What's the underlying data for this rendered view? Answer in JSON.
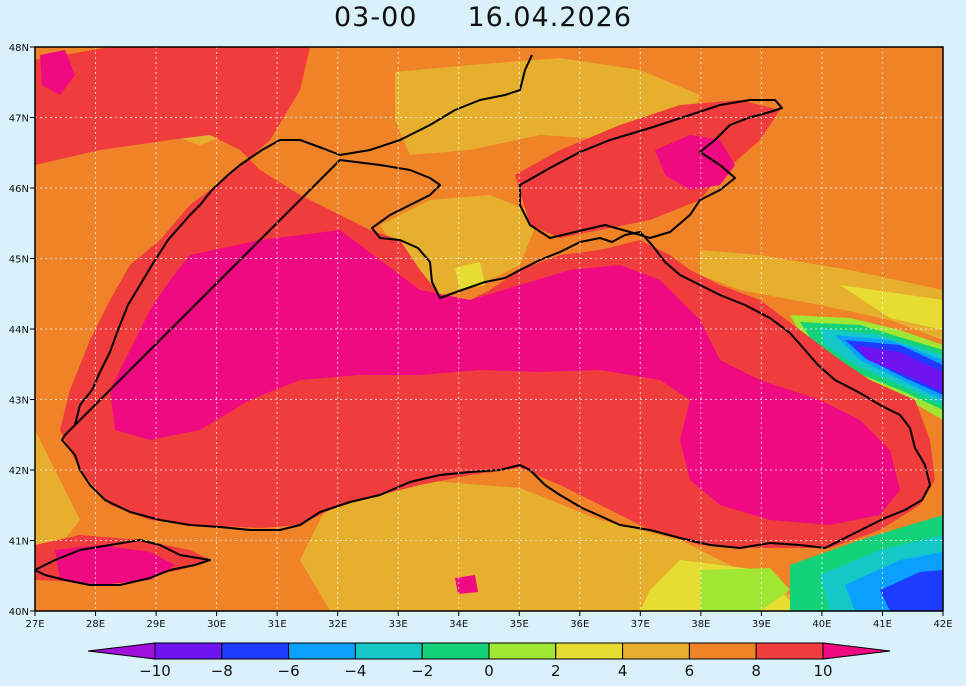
{
  "title": {
    "time": "03-00",
    "date": "16.04.2026"
  },
  "axes": {
    "lon_labels": [
      "27E",
      "28E",
      "29E",
      "30E",
      "31E",
      "32E",
      "33E",
      "34E",
      "35E",
      "36E",
      "37E",
      "38E",
      "39E",
      "40E",
      "41E",
      "42E"
    ],
    "lat_labels": [
      "48N",
      "47N",
      "46N",
      "45N",
      "44N",
      "43N",
      "42N",
      "41N",
      "40N"
    ],
    "lon_range": [
      27,
      42
    ],
    "lat_range": [
      40,
      48
    ],
    "grid": true
  },
  "colorbar": {
    "labels": [
      "-10",
      "-8",
      "-6",
      "-4",
      "-2",
      "0",
      "2",
      "4",
      "6",
      "8",
      "10"
    ],
    "values": [
      -10,
      -8,
      -6,
      -4,
      -2,
      0,
      2,
      4,
      6,
      8,
      10
    ],
    "colors": [
      "#a010dc",
      "#6e14f0",
      "#1e3cff",
      "#0aa0ff",
      "#14c8c8",
      "#14d278",
      "#a0e632",
      "#e6dc32",
      "#e6af2d",
      "#f08228",
      "#f03c3c",
      "#f00a82"
    ]
  }
}
